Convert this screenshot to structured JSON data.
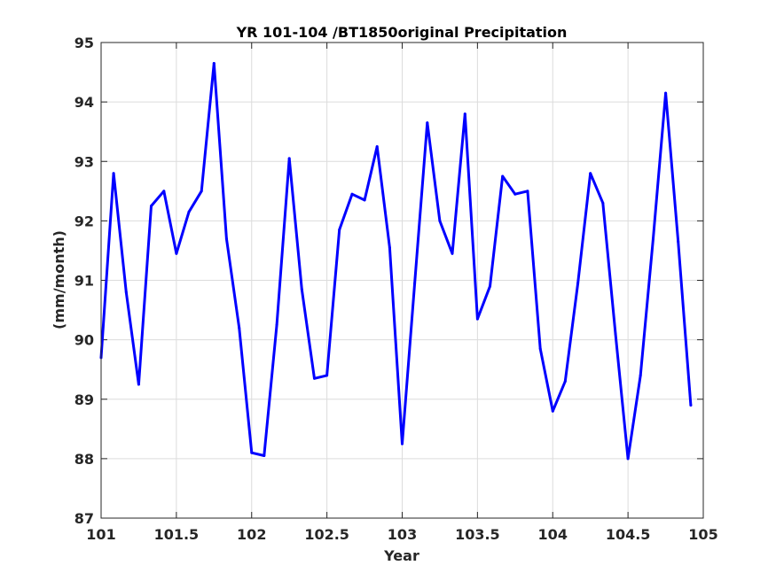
{
  "chart_data": {
    "type": "line",
    "title": "YR 101-104 /BT1850original Precipitation",
    "xlabel": "Year",
    "ylabel": "(mm/month)",
    "xlim": [
      101,
      105
    ],
    "ylim": [
      87,
      95
    ],
    "xticks": [
      101,
      101.5,
      102,
      102.5,
      103,
      103.5,
      104,
      104.5,
      105
    ],
    "xtick_labels": [
      "101",
      "101.5",
      "102",
      "102.5",
      "103",
      "103.5",
      "104",
      "104.5",
      "105"
    ],
    "yticks": [
      87,
      88,
      89,
      90,
      91,
      92,
      93,
      94,
      95
    ],
    "ytick_labels": [
      "87",
      "88",
      "89",
      "90",
      "91",
      "92",
      "93",
      "94",
      "95"
    ],
    "grid": true,
    "series": [
      {
        "color": "#0000ff",
        "x": [
          101.0,
          101.083,
          101.167,
          101.25,
          101.333,
          101.417,
          101.5,
          101.583,
          101.667,
          101.75,
          101.833,
          101.917,
          102.0,
          102.083,
          102.167,
          102.25,
          102.333,
          102.417,
          102.5,
          102.583,
          102.667,
          102.75,
          102.833,
          102.917,
          103.0,
          103.083,
          103.167,
          103.25,
          103.333,
          103.417,
          103.5,
          103.583,
          103.667,
          103.75,
          103.833,
          103.917,
          104.0,
          104.083,
          104.167,
          104.25,
          104.333,
          104.417,
          104.5,
          104.583,
          104.667,
          104.75,
          104.833,
          104.917
        ],
        "y": [
          89.7,
          92.8,
          90.8,
          89.25,
          92.25,
          92.5,
          91.45,
          92.15,
          92.5,
          94.65,
          91.7,
          90.2,
          88.1,
          88.05,
          90.25,
          93.05,
          90.85,
          89.35,
          89.4,
          91.85,
          92.45,
          92.35,
          93.25,
          91.55,
          88.25,
          90.95,
          93.65,
          92.0,
          91.45,
          93.8,
          90.35,
          90.9,
          92.75,
          92.45,
          92.5,
          89.85,
          88.8,
          89.3,
          90.95,
          92.8,
          92.3,
          90.1,
          88.0,
          89.4,
          91.7,
          94.15,
          91.65,
          88.9
        ]
      }
    ]
  }
}
